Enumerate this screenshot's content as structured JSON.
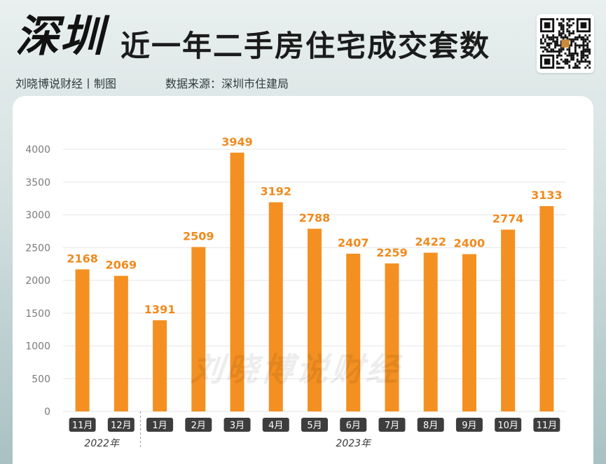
{
  "header": {
    "title_main": "深圳",
    "title_sub": "近一年二手房住宅成交套数",
    "author": "刘晓博说财经丨制图",
    "source": "数据来源：深圳市住建局",
    "qr_icon": "qr-code-icon"
  },
  "watermark": "刘晓博说财经",
  "colors": {
    "bar": "#f49021",
    "label": "#f08a1f",
    "month_tag_bg": "#3d3d3d",
    "month_tag_text": "#ffffff",
    "grid": "#e6e6e6"
  },
  "chart_data": {
    "type": "bar",
    "title": "近一年二手房住宅成交套数",
    "categories": [
      "11月",
      "12月",
      "1月",
      "2月",
      "3月",
      "4月",
      "5月",
      "6月",
      "7月",
      "8月",
      "9月",
      "10月",
      "11月"
    ],
    "values": [
      2168,
      2069,
      1391,
      2509,
      3949,
      3192,
      2788,
      2407,
      2259,
      2422,
      2400,
      2774,
      3133
    ],
    "year_groups": [
      {
        "label": "2022年",
        "start": 0,
        "end": 1
      },
      {
        "label": "2023年",
        "start": 2,
        "end": 12
      }
    ],
    "ylim": [
      0,
      4000
    ],
    "yticks": [
      0,
      500,
      1000,
      1500,
      2000,
      2500,
      3000,
      3500,
      4000
    ],
    "grid": true,
    "data_labels": true,
    "legend": "none"
  }
}
